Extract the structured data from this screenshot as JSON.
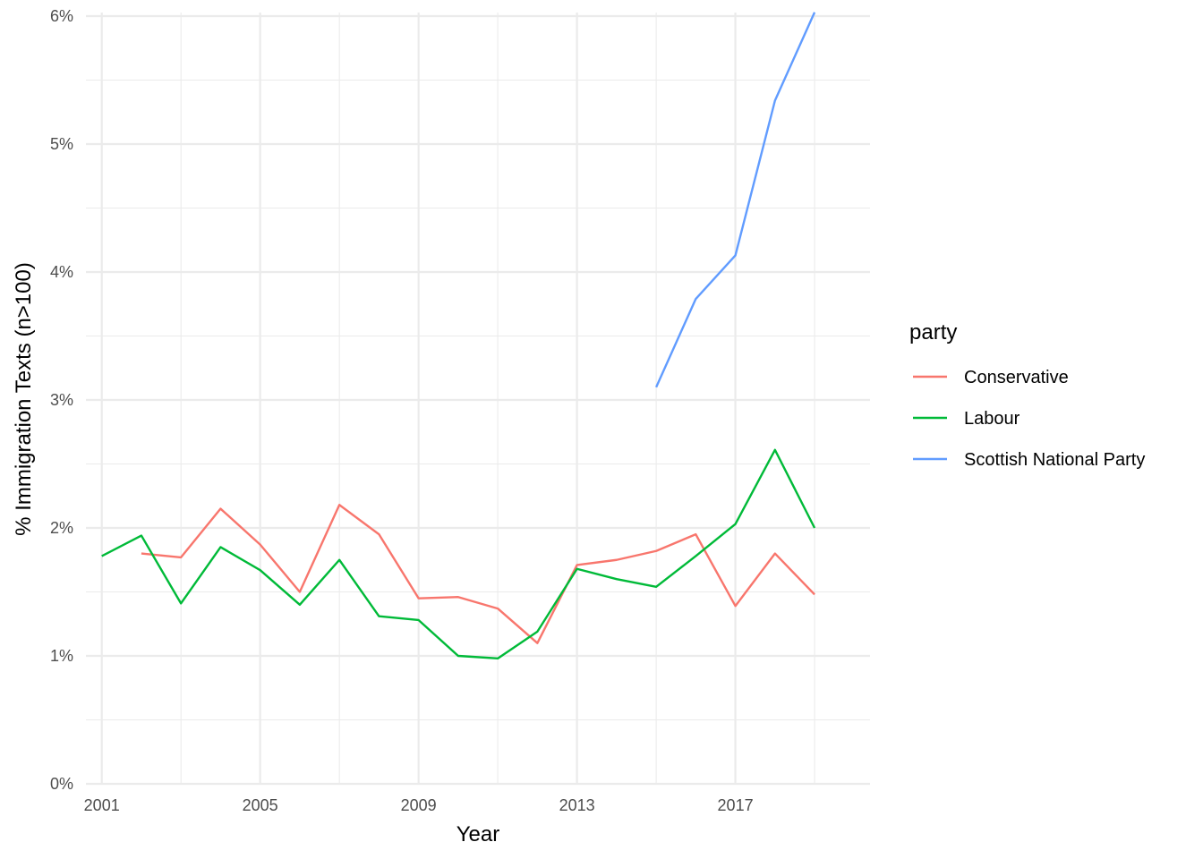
{
  "chart_data": {
    "type": "line",
    "title": "",
    "xlabel": "Year",
    "ylabel": "% Immigration Texts (n>100)",
    "xlim": [
      2000.6,
      2020.4
    ],
    "ylim": [
      0,
      6
    ],
    "x_ticks": [
      2001,
      2005,
      2009,
      2013,
      2017
    ],
    "x_tick_labels": [
      "2001",
      "2005",
      "2009",
      "2013",
      "2017"
    ],
    "y_ticks": [
      0,
      1,
      2,
      3,
      4,
      5,
      6
    ],
    "y_tick_labels": [
      "0%",
      "1%",
      "2%",
      "3%",
      "4%",
      "5%",
      "6%"
    ],
    "grid": true,
    "legend": {
      "title": "party",
      "placement": "right"
    },
    "series": [
      {
        "name": "Conservative",
        "color": "#F8766D",
        "x": [
          2002,
          2003,
          2004,
          2005,
          2006,
          2007,
          2008,
          2009,
          2010,
          2011,
          2012,
          2013,
          2014,
          2015,
          2016,
          2017,
          2018,
          2019
        ],
        "values": [
          1.8,
          1.77,
          2.15,
          1.87,
          1.5,
          2.18,
          1.95,
          1.45,
          1.46,
          1.37,
          1.1,
          1.71,
          1.75,
          1.82,
          1.95,
          1.39,
          1.8,
          1.48
        ]
      },
      {
        "name": "Labour",
        "color": "#00BA38",
        "x": [
          2001,
          2002,
          2003,
          2004,
          2005,
          2006,
          2007,
          2008,
          2009,
          2010,
          2011,
          2012,
          2013,
          2014,
          2015,
          2016,
          2017,
          2018,
          2019
        ],
        "values": [
          1.78,
          1.94,
          1.41,
          1.85,
          1.67,
          1.4,
          1.75,
          1.31,
          1.28,
          1.0,
          0.98,
          1.19,
          1.68,
          1.6,
          1.54,
          1.78,
          2.03,
          2.61,
          2.0
        ]
      },
      {
        "name": "Scottish National Party",
        "color": "#619CFF",
        "x": [
          2015,
          2016,
          2017,
          2018,
          2019
        ],
        "values": [
          3.1,
          3.79,
          4.13,
          5.34,
          6.03
        ]
      }
    ]
  }
}
